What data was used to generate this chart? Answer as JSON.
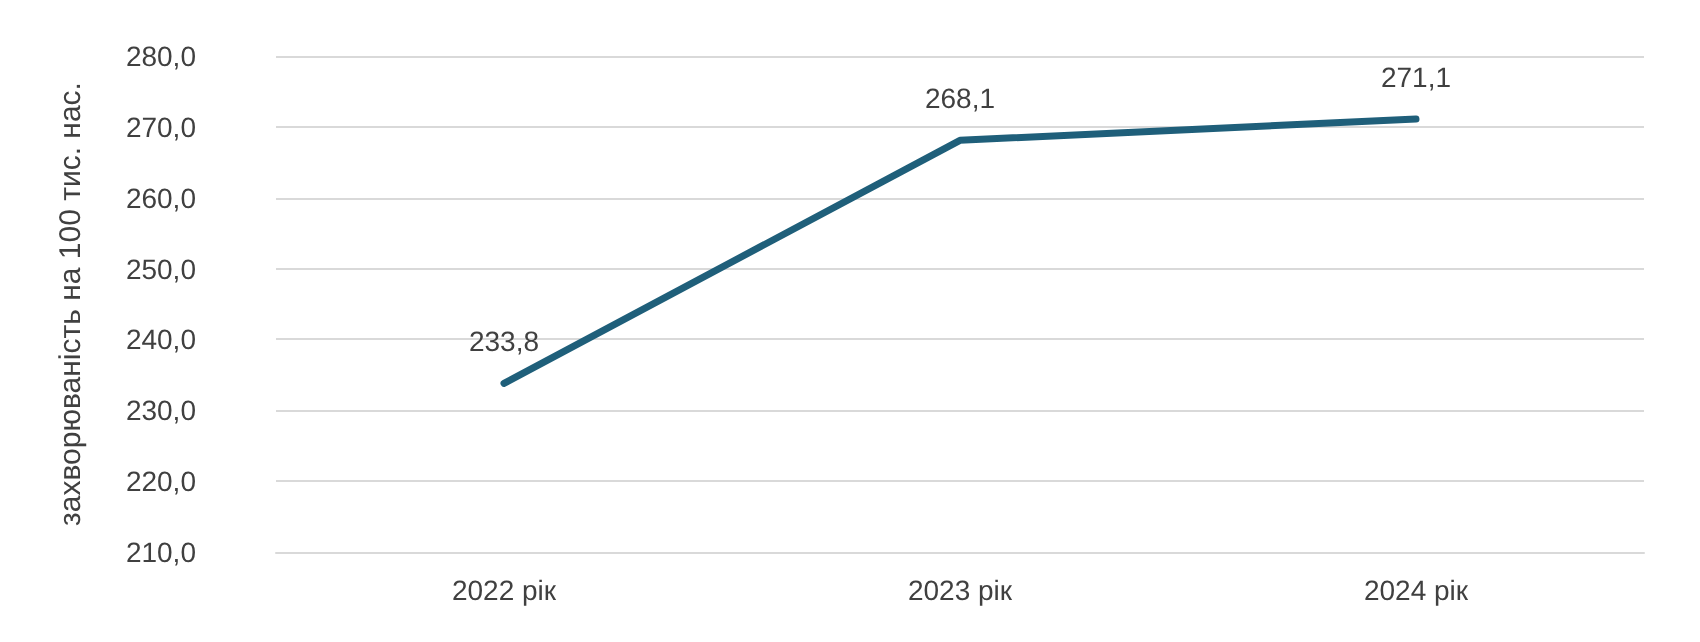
{
  "chart_data": {
    "type": "line",
    "ylabel": "захворюваність на 100 тис. нас.",
    "categories": [
      "2022 рік",
      "2023 рік",
      "2024 рік"
    ],
    "series": [
      {
        "color": "#1f5f7a",
        "values": [
          233.8,
          268.1,
          271.1
        ],
        "value_labels": [
          "233,8",
          "268,1",
          "271,1"
        ]
      }
    ],
    "ylim": [
      210,
      280
    ],
    "yticks": [
      {
        "value": 210,
        "label": "210,0"
      },
      {
        "value": 220,
        "label": "220,0"
      },
      {
        "value": 230,
        "label": "230,0"
      },
      {
        "value": 240,
        "label": "240,0"
      },
      {
        "value": 250,
        "label": "250,0"
      },
      {
        "value": 260,
        "label": "260,0"
      },
      {
        "value": 270,
        "label": "270,0"
      },
      {
        "value": 280,
        "label": "280,0"
      }
    ],
    "grid": "y",
    "marker": "none",
    "line_style": "solid"
  }
}
